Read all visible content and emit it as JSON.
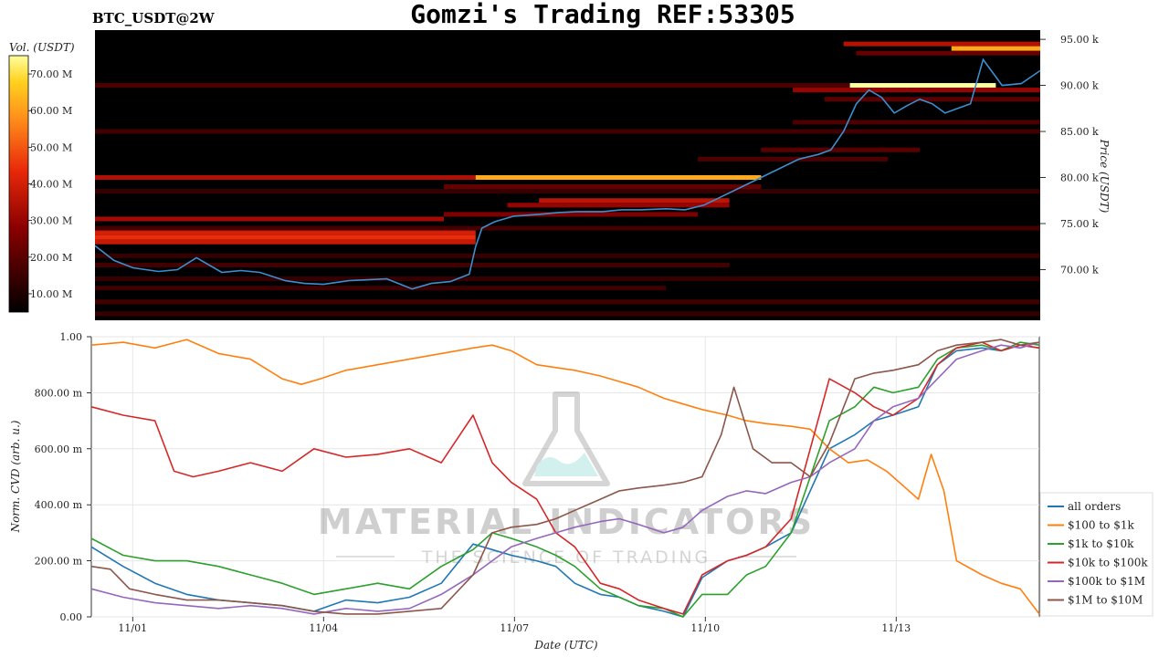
{
  "header": {
    "symbol": "BTC_USDT@2W",
    "title": "Gomzi's Trading REF:53305"
  },
  "watermark": {
    "brand": "MATERIAL INDICATORS",
    "tagline": "THE SCIENCE OF TRADING"
  },
  "colors": {
    "all_orders": "#1f77b4",
    "b100_1k": "#ff7f0e",
    "b1k_10k": "#2ca02c",
    "b10k_100k": "#d62728",
    "b100k_1m": "#9467bd",
    "b1m_10m": "#8c564b",
    "price_line": "#3b8fd0"
  },
  "chart_data": [
    {
      "type": "heatmap",
      "title": "BTC_USDT@2W",
      "colorbar_label": "Vol. (USDT)",
      "colorbar_ticks": [
        "10.00 M",
        "20.00 M",
        "30.00 M",
        "40.00 M",
        "50.00 M",
        "60.00 M",
        "70.00 M"
      ],
      "ylabel": "Price (USDT)",
      "y_ticks": [
        "70.00 k",
        "75.00 k",
        "80.00 k",
        "85.00 k",
        "90.00 k",
        "95.00 k"
      ],
      "ylim": [
        64500,
        96000
      ],
      "xlim": [
        0,
        14.9
      ],
      "price_series": {
        "name": "price",
        "x": [
          0,
          0.3,
          0.6,
          1.0,
          1.3,
          1.6,
          2.0,
          2.3,
          2.6,
          3.0,
          3.3,
          3.6,
          4.0,
          4.3,
          4.6,
          5.0,
          5.3,
          5.6,
          5.9,
          6.0,
          6.1,
          6.3,
          6.6,
          7.0,
          7.3,
          7.6,
          8.0,
          8.3,
          8.6,
          9.0,
          9.3,
          9.6,
          9.9,
          10.2,
          10.5,
          10.8,
          11.1,
          11.4,
          11.6,
          11.8,
          12.0,
          12.2,
          12.4,
          12.6,
          12.8,
          13.0,
          13.2,
          13.4,
          13.6,
          13.8,
          14.0,
          14.3,
          14.6,
          14.9
        ],
        "y": [
          72600,
          71000,
          70200,
          69800,
          70000,
          71300,
          69700,
          69900,
          69700,
          68800,
          68500,
          68400,
          68800,
          68900,
          69000,
          67900,
          68500,
          68700,
          69500,
          72500,
          74500,
          75200,
          75800,
          76000,
          76200,
          76300,
          76300,
          76500,
          76500,
          76600,
          76500,
          77000,
          78000,
          79000,
          80000,
          81000,
          82000,
          82500,
          83000,
          85000,
          88000,
          89500,
          88700,
          87000,
          87800,
          88500,
          88000,
          87000,
          87500,
          88000,
          92800,
          90000,
          90200,
          91600
        ]
      },
      "levels": [
        {
          "price": 94500,
          "from": 11.8,
          "to": 14.9,
          "vol": 35
        },
        {
          "price": 94000,
          "from": 13.5,
          "to": 14.9,
          "vol": 62
        },
        {
          "price": 93500,
          "from": 12.0,
          "to": 14.9,
          "vol": 22
        },
        {
          "price": 90000,
          "from": 0.0,
          "to": 11.9,
          "vol": 18
        },
        {
          "price": 90000,
          "from": 11.9,
          "to": 14.2,
          "vol": 75
        },
        {
          "price": 89500,
          "from": 11.0,
          "to": 14.9,
          "vol": 30
        },
        {
          "price": 88500,
          "from": 11.5,
          "to": 14.9,
          "vol": 20
        },
        {
          "price": 86000,
          "from": 11.0,
          "to": 14.9,
          "vol": 18
        },
        {
          "price": 85000,
          "from": 0.0,
          "to": 14.9,
          "vol": 16
        },
        {
          "price": 83000,
          "from": 10.5,
          "to": 13.0,
          "vol": 20
        },
        {
          "price": 82000,
          "from": 9.5,
          "to": 12.5,
          "vol": 18
        },
        {
          "price": 80000,
          "from": 0.0,
          "to": 6.0,
          "vol": 34
        },
        {
          "price": 80000,
          "from": 6.0,
          "to": 10.5,
          "vol": 62
        },
        {
          "price": 79000,
          "from": 5.5,
          "to": 10.5,
          "vol": 22
        },
        {
          "price": 78500,
          "from": 0.0,
          "to": 14.9,
          "vol": 14
        },
        {
          "price": 77500,
          "from": 7.0,
          "to": 10.0,
          "vol": 36
        },
        {
          "price": 77000,
          "from": 6.5,
          "to": 10.0,
          "vol": 30
        },
        {
          "price": 76000,
          "from": 5.5,
          "to": 9.5,
          "vol": 26
        },
        {
          "price": 75500,
          "from": 0.0,
          "to": 5.5,
          "vol": 32
        },
        {
          "price": 74500,
          "from": 0.0,
          "to": 14.9,
          "vol": 16
        },
        {
          "price": 74000,
          "from": 0.0,
          "to": 6.0,
          "vol": 40
        },
        {
          "price": 73500,
          "from": 0.0,
          "to": 6.0,
          "vol": 44
        },
        {
          "price": 73000,
          "from": 0.0,
          "to": 6.0,
          "vol": 38
        },
        {
          "price": 71500,
          "from": 0.0,
          "to": 14.9,
          "vol": 14
        },
        {
          "price": 70500,
          "from": 0.0,
          "to": 10.0,
          "vol": 16
        },
        {
          "price": 69000,
          "from": 0.0,
          "to": 14.9,
          "vol": 14
        },
        {
          "price": 68000,
          "from": 0.0,
          "to": 9.0,
          "vol": 15
        },
        {
          "price": 66500,
          "from": 0.0,
          "to": 14.9,
          "vol": 16
        },
        {
          "price": 65200,
          "from": 0.0,
          "to": 14.9,
          "vol": 14
        }
      ]
    },
    {
      "type": "line",
      "xlabel": "Date (UTC)",
      "ylabel": "Norm. CVD (arb. u.)",
      "x_ticks": [
        {
          "x": 0.65,
          "label": "11/01"
        },
        {
          "x": 3.65,
          "label": "11/04"
        },
        {
          "x": 6.65,
          "label": "11/07"
        },
        {
          "x": 9.65,
          "label": "11/10"
        },
        {
          "x": 12.65,
          "label": "11/13"
        }
      ],
      "xlim": [
        0,
        14.9
      ],
      "y_ticks": [
        "0.00",
        "200.00 m",
        "400.00 m",
        "600.00 m",
        "800.00 m",
        "1.00"
      ],
      "ylim": [
        0,
        1
      ],
      "legend_position": "right",
      "series": [
        {
          "name": "all orders",
          "key": "all_orders",
          "x": [
            0,
            0.5,
            1,
            1.5,
            2,
            2.5,
            3,
            3.5,
            4,
            4.5,
            5,
            5.5,
            6,
            6.3,
            6.6,
            7,
            7.3,
            7.6,
            8,
            8.3,
            8.6,
            9,
            9.3,
            9.6,
            10,
            10.3,
            10.6,
            11,
            11.3,
            11.6,
            12,
            12.3,
            12.6,
            13,
            13.3,
            13.6,
            14,
            14.3,
            14.6,
            14.9
          ],
          "y": [
            0.25,
            0.18,
            0.12,
            0.08,
            0.06,
            0.05,
            0.04,
            0.02,
            0.06,
            0.05,
            0.07,
            0.12,
            0.26,
            0.24,
            0.22,
            0.2,
            0.18,
            0.12,
            0.08,
            0.07,
            0.04,
            0.02,
            0.0,
            0.14,
            0.2,
            0.22,
            0.25,
            0.3,
            0.45,
            0.6,
            0.65,
            0.7,
            0.72,
            0.75,
            0.9,
            0.95,
            0.96,
            0.95,
            0.97,
            0.96
          ]
        },
        {
          "name": "$100 to $1k",
          "key": "b100_1k",
          "x": [
            0,
            0.5,
            1,
            1.5,
            2,
            2.5,
            3,
            3.3,
            3.6,
            4,
            4.5,
            5,
            5.5,
            6,
            6.3,
            6.6,
            7,
            7.3,
            7.6,
            8,
            8.3,
            8.6,
            9,
            9.3,
            9.6,
            10,
            10.3,
            10.6,
            11,
            11.3,
            11.6,
            11.9,
            12.2,
            12.5,
            12.8,
            13,
            13.2,
            13.4,
            13.6,
            14,
            14.3,
            14.6,
            14.9
          ],
          "y": [
            0.97,
            0.98,
            0.96,
            0.99,
            0.94,
            0.92,
            0.85,
            0.83,
            0.85,
            0.88,
            0.9,
            0.92,
            0.94,
            0.96,
            0.97,
            0.95,
            0.9,
            0.89,
            0.88,
            0.86,
            0.84,
            0.82,
            0.78,
            0.76,
            0.74,
            0.72,
            0.7,
            0.69,
            0.68,
            0.67,
            0.6,
            0.55,
            0.56,
            0.52,
            0.46,
            0.42,
            0.58,
            0.45,
            0.2,
            0.15,
            0.12,
            0.1,
            0.01
          ]
        },
        {
          "name": "$1k to $10k",
          "key": "b1k_10k",
          "x": [
            0,
            0.5,
            1,
            1.5,
            2,
            2.5,
            3,
            3.5,
            4,
            4.5,
            5,
            5.5,
            6,
            6.3,
            6.6,
            7,
            7.3,
            7.6,
            8,
            8.3,
            8.6,
            9,
            9.3,
            9.6,
            10,
            10.3,
            10.6,
            11,
            11.3,
            11.6,
            12,
            12.3,
            12.6,
            13,
            13.3,
            13.6,
            14,
            14.3,
            14.6,
            14.9
          ],
          "y": [
            0.28,
            0.22,
            0.2,
            0.2,
            0.18,
            0.15,
            0.12,
            0.08,
            0.1,
            0.12,
            0.1,
            0.18,
            0.24,
            0.3,
            0.28,
            0.25,
            0.22,
            0.18,
            0.1,
            0.07,
            0.04,
            0.03,
            0.0,
            0.08,
            0.08,
            0.15,
            0.18,
            0.3,
            0.5,
            0.7,
            0.75,
            0.82,
            0.8,
            0.82,
            0.92,
            0.96,
            0.97,
            0.95,
            0.98,
            0.97
          ]
        },
        {
          "name": "$10k to $100k",
          "key": "b10k_100k",
          "x": [
            0,
            0.5,
            1,
            1.3,
            1.6,
            2,
            2.5,
            3,
            3.5,
            4,
            4.5,
            5,
            5.5,
            6,
            6.3,
            6.6,
            7,
            7.3,
            7.6,
            8,
            8.3,
            8.6,
            9,
            9.3,
            9.6,
            10,
            10.3,
            10.6,
            11,
            11.3,
            11.6,
            12,
            12.3,
            12.6,
            13,
            13.3,
            13.6,
            14,
            14.3,
            14.6,
            14.9
          ],
          "y": [
            0.75,
            0.72,
            0.7,
            0.52,
            0.5,
            0.52,
            0.55,
            0.52,
            0.6,
            0.57,
            0.58,
            0.6,
            0.55,
            0.72,
            0.55,
            0.48,
            0.42,
            0.3,
            0.25,
            0.12,
            0.1,
            0.06,
            0.03,
            0.01,
            0.15,
            0.2,
            0.22,
            0.25,
            0.35,
            0.6,
            0.85,
            0.8,
            0.75,
            0.72,
            0.78,
            0.9,
            0.96,
            0.98,
            0.95,
            0.97,
            0.96
          ]
        },
        {
          "name": "$100k to $1M",
          "key": "b100k_1m",
          "x": [
            0,
            0.5,
            1,
            1.5,
            2,
            2.5,
            3,
            3.5,
            4,
            4.5,
            5,
            5.5,
            6,
            6.3,
            6.6,
            7,
            7.3,
            7.6,
            8,
            8.3,
            8.6,
            9,
            9.3,
            9.6,
            10,
            10.3,
            10.6,
            11,
            11.3,
            11.6,
            12,
            12.3,
            12.6,
            13,
            13.3,
            13.6,
            14,
            14.3,
            14.6,
            14.9
          ],
          "y": [
            0.1,
            0.07,
            0.05,
            0.04,
            0.03,
            0.04,
            0.03,
            0.01,
            0.03,
            0.02,
            0.03,
            0.08,
            0.15,
            0.2,
            0.25,
            0.28,
            0.3,
            0.32,
            0.34,
            0.35,
            0.33,
            0.3,
            0.32,
            0.38,
            0.43,
            0.45,
            0.44,
            0.48,
            0.5,
            0.55,
            0.6,
            0.7,
            0.75,
            0.78,
            0.85,
            0.92,
            0.95,
            0.97,
            0.96,
            0.98
          ]
        },
        {
          "name": "$1M to $10M",
          "key": "b1m_10m",
          "x": [
            0,
            0.3,
            0.6,
            1,
            1.5,
            2,
            2.5,
            3,
            3.5,
            4,
            4.5,
            5,
            5.5,
            6,
            6.3,
            6.6,
            7,
            7.3,
            7.6,
            8,
            8.3,
            8.6,
            9,
            9.3,
            9.6,
            9.9,
            10.1,
            10.4,
            10.7,
            11,
            11.3,
            11.6,
            12,
            12.3,
            12.6,
            13,
            13.3,
            13.6,
            14,
            14.3,
            14.6,
            14.9
          ],
          "y": [
            0.18,
            0.17,
            0.1,
            0.08,
            0.06,
            0.06,
            0.05,
            0.04,
            0.02,
            0.01,
            0.01,
            0.02,
            0.03,
            0.15,
            0.3,
            0.32,
            0.33,
            0.35,
            0.38,
            0.42,
            0.45,
            0.46,
            0.47,
            0.48,
            0.5,
            0.65,
            0.82,
            0.6,
            0.55,
            0.55,
            0.5,
            0.62,
            0.85,
            0.87,
            0.88,
            0.9,
            0.95,
            0.97,
            0.98,
            0.99,
            0.97,
            0.98
          ]
        }
      ]
    }
  ]
}
